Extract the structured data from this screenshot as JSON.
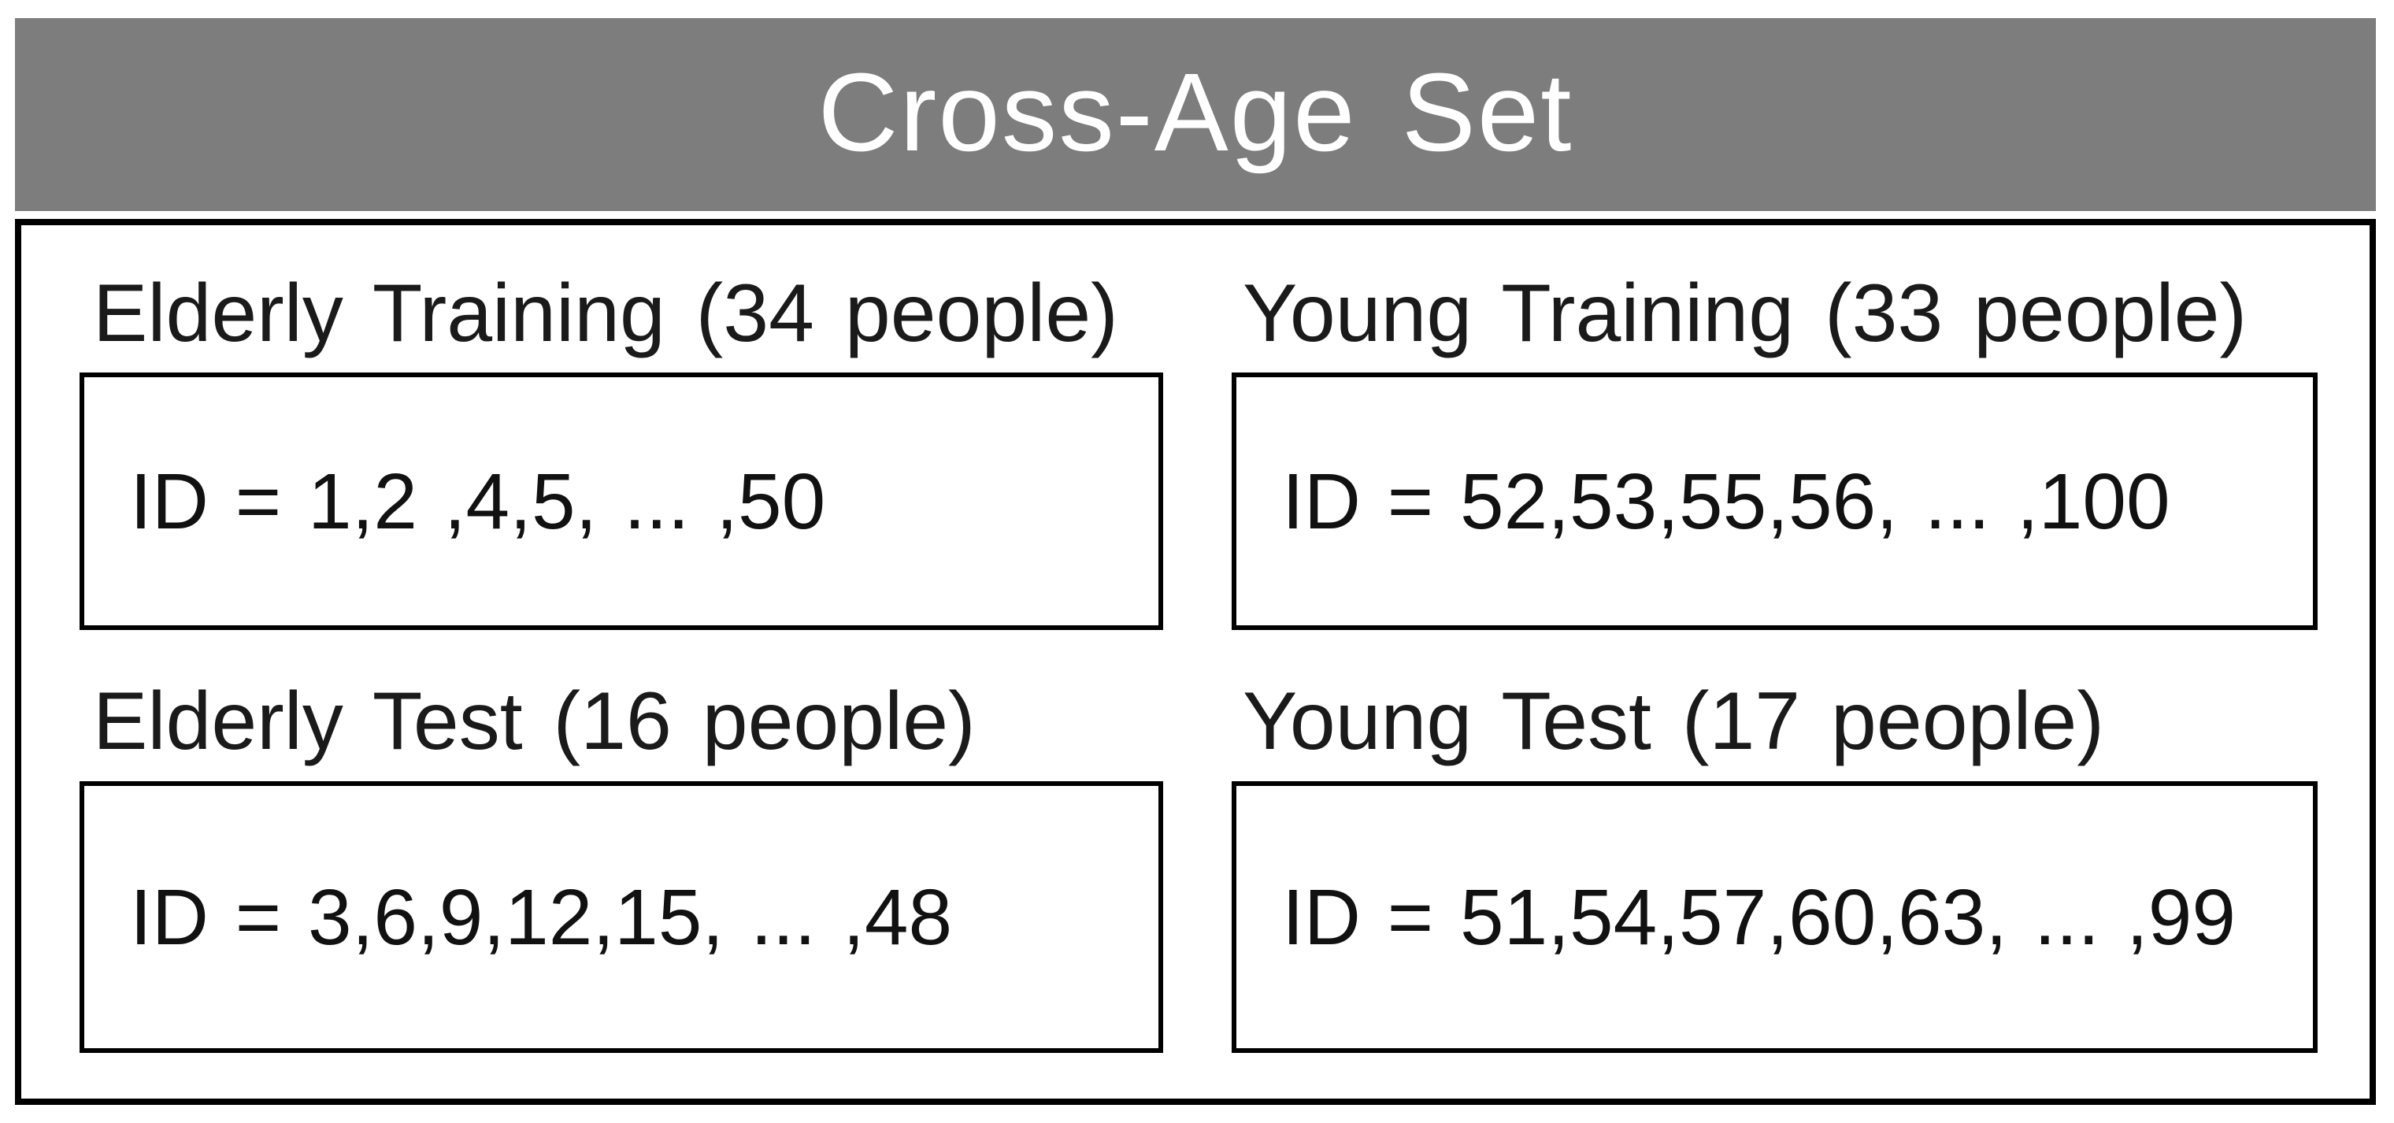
{
  "figure": {
    "title": "Cross-Age Set"
  },
  "colors": {
    "header_bg": "#7d7d7d",
    "header_text": "#ffffff",
    "box_border": "#000000",
    "label_text": "#1a1a1a",
    "id_text": "#111111",
    "page_bg": "#ffffff"
  },
  "cells": [
    {
      "name": "elderly-training",
      "label": "Elderly Training (34 people)",
      "id_line": "ID = 1,2 ,4,5, ... ,50"
    },
    {
      "name": "young-training",
      "label": "Young Training (33 people)",
      "id_line": "ID = 52,53,55,56, ... ,100"
    },
    {
      "name": "elderly-test",
      "label": "Elderly Test (16 people)",
      "id_line": "ID = 3,6,9,12,15, ... ,48"
    },
    {
      "name": "young-test",
      "label": "Young Test (17 people)",
      "id_line": "ID = 51,54,57,60,63, ... ,99"
    }
  ]
}
